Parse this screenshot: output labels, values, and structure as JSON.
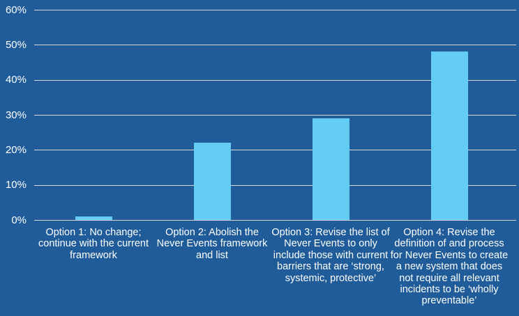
{
  "chart_data": {
    "type": "bar",
    "title": "",
    "xlabel": "",
    "ylabel": "",
    "ylim": [
      0,
      60
    ],
    "y_ticks": [
      "0%",
      "10%",
      "20%",
      "30%",
      "40%",
      "50%",
      "60%"
    ],
    "grid": true,
    "legend": null,
    "colors": {
      "background": "#1f5c99",
      "bar": "#63ccf3",
      "grid": "#d9d9d9",
      "text": "#ffffff"
    },
    "categories": [
      "Option 1: No change; continue with the current framework",
      "Option 2: Abolish the Never Events framework and list",
      "Option 3: Revise the list of Never Events to only include those with current barriers that are ‘strong, systemic, protective’",
      "Option 4: Revise the definition of and process for Never Events to create a new system that does not require all relevant incidents to be ‘wholly preventable’"
    ],
    "values": [
      1,
      22,
      29,
      48
    ],
    "unit": "%"
  },
  "axis": {
    "y_labels": [
      "60%",
      "50%",
      "40%",
      "30%",
      "20%",
      "10%",
      "0%"
    ]
  },
  "labels": {
    "opt1": "Option 1: No change; continue with the current framework",
    "opt2": "Option 2: Abolish the Never Events framework and list",
    "opt3": "Option 3: Revise the list of Never Events to only include those with current barriers that are ‘strong, systemic, protective’",
    "opt4": "Option 4: Revise the definition of and process for Never Events to create a new system that does not require all relevant incidents to be ‘wholly preventable’"
  }
}
